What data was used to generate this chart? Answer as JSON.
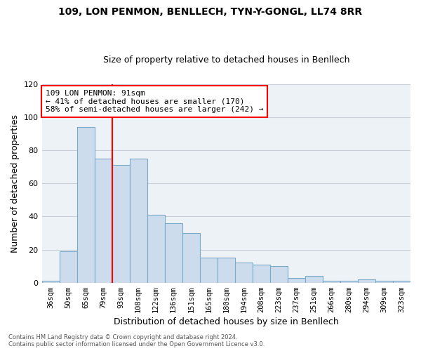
{
  "title_line1": "109, LON PENMON, BENLLECH, TYN-Y-GONGL, LL74 8RR",
  "title_line2": "Size of property relative to detached houses in Benllech",
  "xlabel": "Distribution of detached houses by size in Benllech",
  "ylabel": "Number of detached properties",
  "categories": [
    "36sqm",
    "50sqm",
    "65sqm",
    "79sqm",
    "93sqm",
    "108sqm",
    "122sqm",
    "136sqm",
    "151sqm",
    "165sqm",
    "180sqm",
    "194sqm",
    "208sqm",
    "223sqm",
    "237sqm",
    "251sqm",
    "266sqm",
    "280sqm",
    "294sqm",
    "309sqm",
    "323sqm"
  ],
  "values": [
    1,
    19,
    94,
    75,
    71,
    75,
    41,
    36,
    30,
    15,
    15,
    12,
    11,
    10,
    3,
    4,
    1,
    1,
    2,
    1,
    1
  ],
  "bar_color": "#ccdcec",
  "bar_edge_color": "#7aaaca",
  "vline_x_index": 4,
  "vline_color": "red",
  "annotation_text": "109 LON PENMON: 91sqm\n← 41% of detached houses are smaller (170)\n58% of semi-detached houses are larger (242) →",
  "annotation_box_color": "white",
  "annotation_box_edge": "red",
  "ylim": [
    0,
    120
  ],
  "yticks": [
    0,
    20,
    40,
    60,
    80,
    100,
    120
  ],
  "grid_color": "#c8d0d8",
  "bg_color": "#edf2f7",
  "footer1": "Contains HM Land Registry data © Crown copyright and database right 2024.",
  "footer2": "Contains public sector information licensed under the Open Government Licence v3.0."
}
